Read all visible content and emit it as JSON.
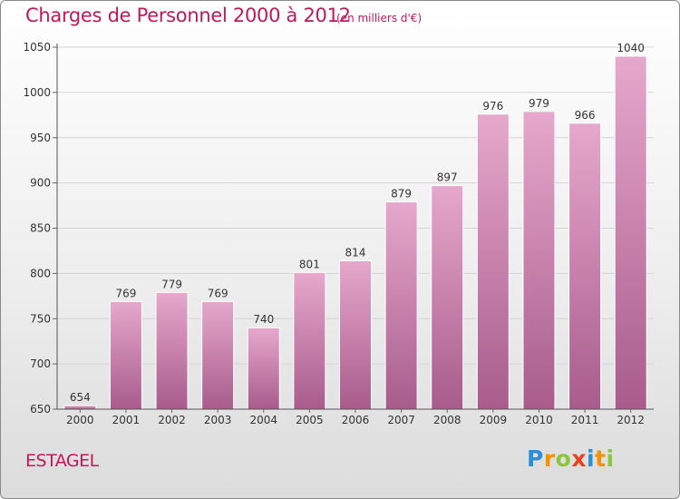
{
  "title": "Charges de Personnel 2000 à 2012",
  "subtitle": "(en milliers d'€)",
  "commune": "ESTAGEL",
  "logo": {
    "letters": [
      "P",
      "r",
      "o",
      "x",
      "i",
      "t",
      "i"
    ],
    "colors": [
      "#2a8fd6",
      "#f29200",
      "#8cc63f",
      "#e8411f",
      "#2a8fd6",
      "#f29200",
      "#8cc63f"
    ]
  },
  "colors": {
    "accent": "#c2185b",
    "bar_top": "#e6a8cc",
    "bar_bottom": "#a85c8b"
  },
  "chart_data": {
    "type": "bar",
    "title": "Charges de Personnel 2000 à 2012",
    "subtitle": "(en milliers d'€)",
    "categories": [
      "2000",
      "2001",
      "2002",
      "2003",
      "2004",
      "2005",
      "2006",
      "2007",
      "2008",
      "2009",
      "2010",
      "2011",
      "2012"
    ],
    "values": [
      654,
      769,
      779,
      769,
      740,
      801,
      814,
      879,
      897,
      976,
      979,
      966,
      1040
    ],
    "ylim": [
      650,
      1050
    ],
    "yticks": [
      650,
      700,
      750,
      800,
      850,
      900,
      950,
      1000,
      1050
    ],
    "grid": "horizontal",
    "data_labels": true
  }
}
